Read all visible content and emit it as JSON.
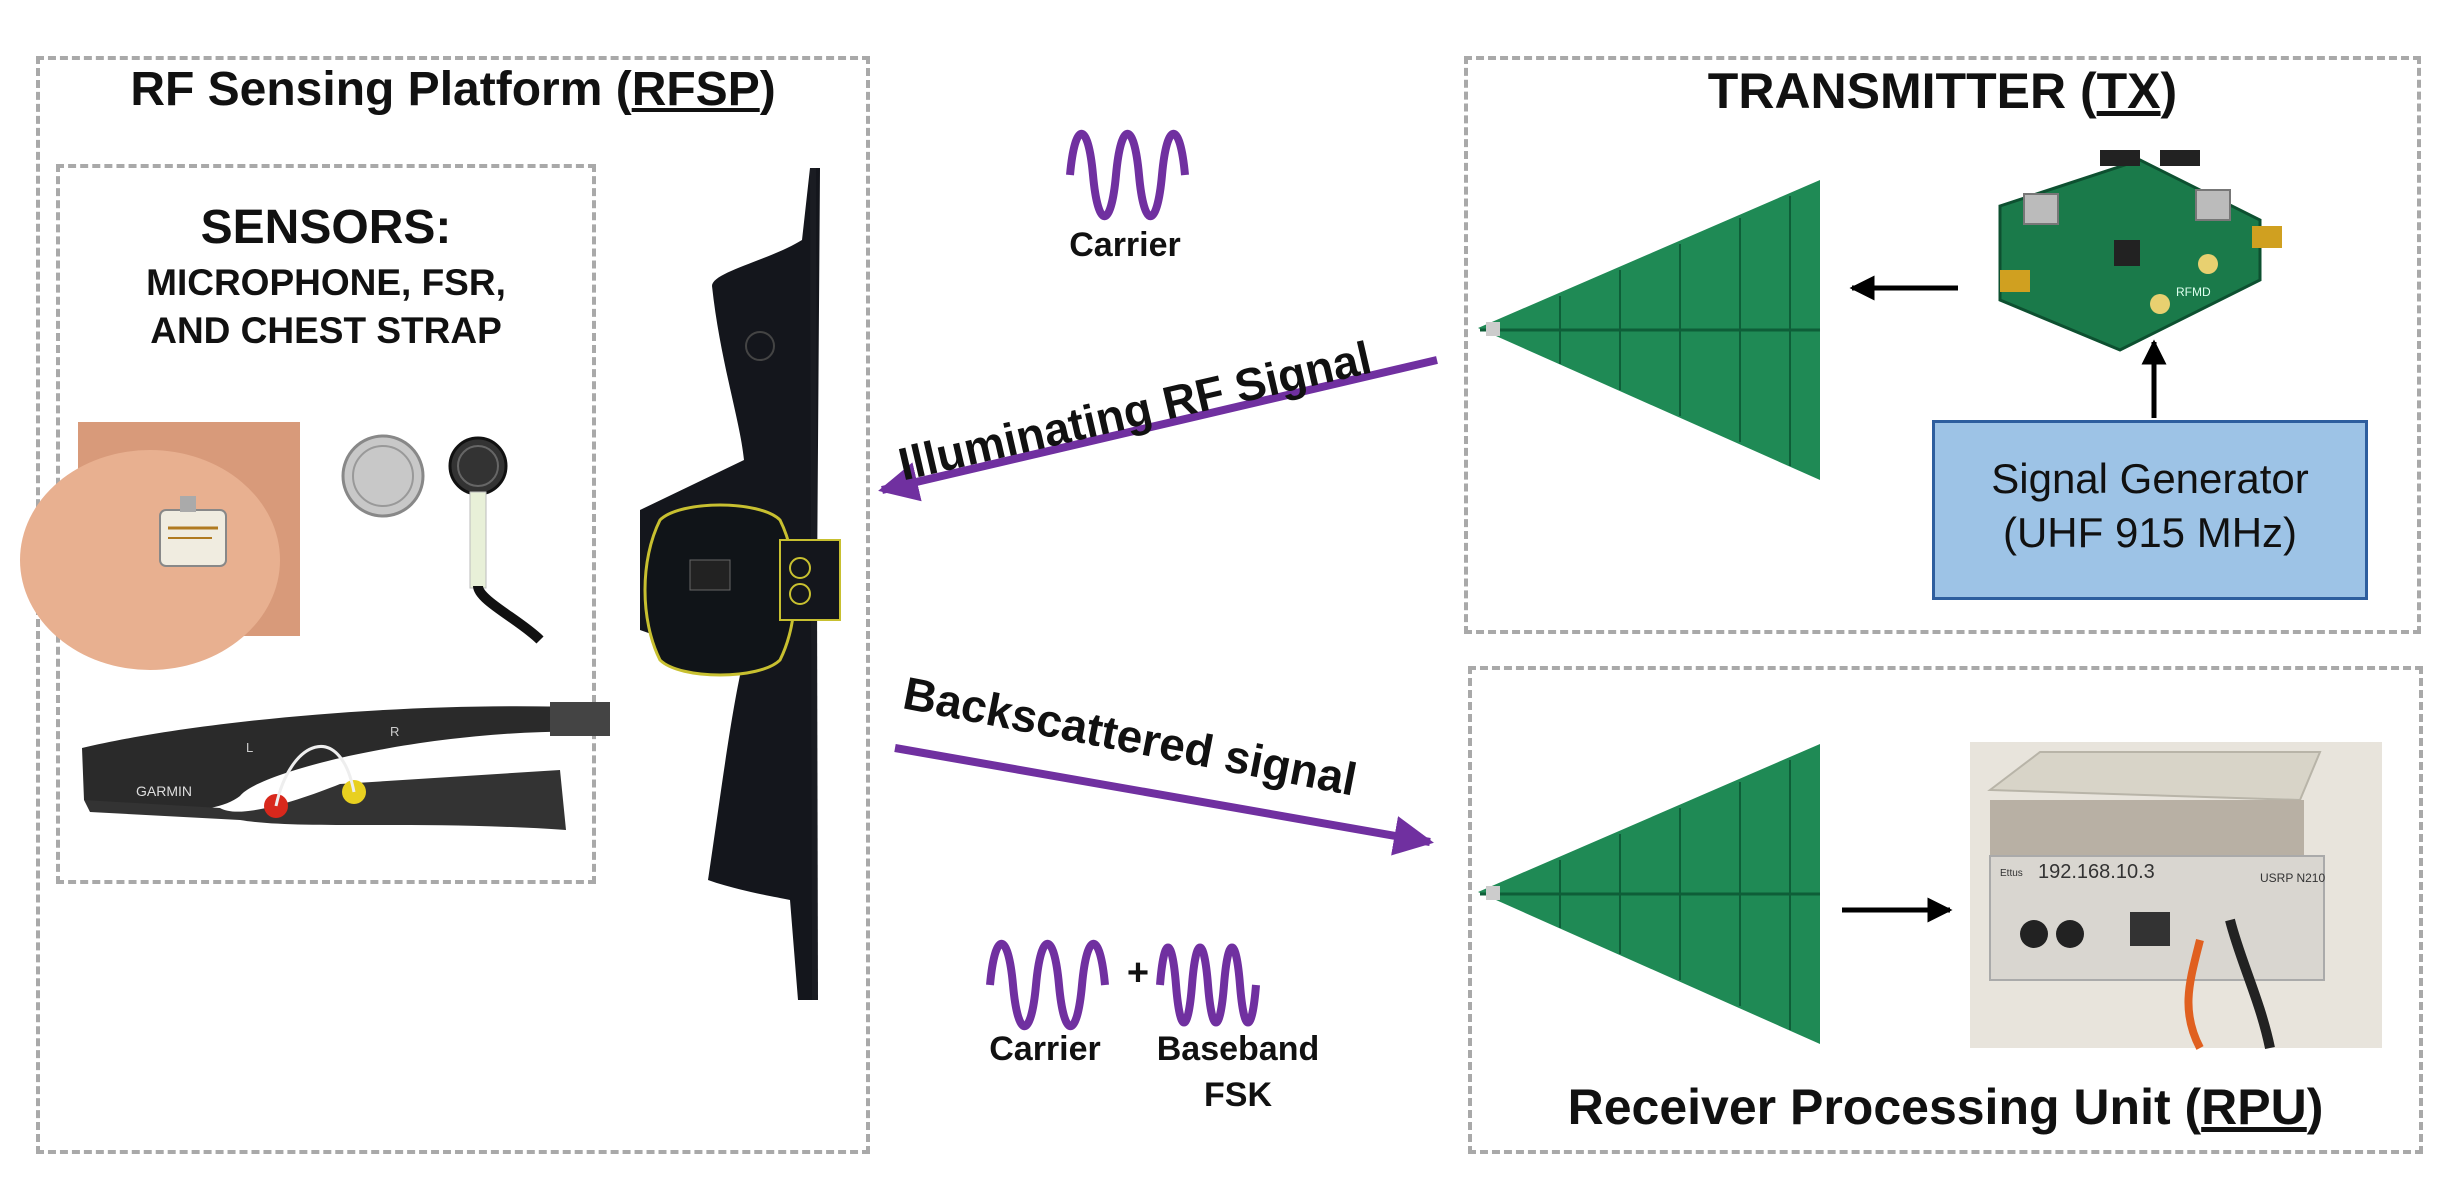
{
  "rfsp": {
    "title_prefix": "RF Sensing Platform (",
    "title_abbr": "RFSP",
    "title_suffix": ")"
  },
  "sensors": {
    "heading": "SENSORS:",
    "line1": "MICROPHONE, FSR,",
    "line2": "AND CHEST STRAP",
    "strap_brand": "GARMIN",
    "strap_left": "L",
    "strap_right": "R"
  },
  "transmitter": {
    "title_prefix": "TRANSMITTER (",
    "title_abbr": "TX",
    "title_suffix": ")",
    "board_label": "RFMD"
  },
  "signal_generator": {
    "line1": "Signal Generator",
    "line2": "(UHF 915 MHz)"
  },
  "rpu": {
    "title_prefix": "Receiver Processing Unit (",
    "title_abbr": "RPU",
    "title_suffix": ")",
    "device_ip": "192.168.10.3",
    "device_model": "USRP N210",
    "device_brand": "Ettus"
  },
  "signals": {
    "carrier_top": "Carrier",
    "illuminating": "Illuminating RF Signal",
    "backscattered": "Backscattered signal",
    "carrier_bottom": "Carrier",
    "plus": "+",
    "baseband_line1": "Baseband",
    "baseband_line2": "FSK"
  },
  "colors": {
    "purple": "#7030a0",
    "dash": "#a9a9a9",
    "sig_box": "#9dc3e6",
    "sig_border": "#2e5e9e",
    "pcb": "#1a7a4a"
  }
}
